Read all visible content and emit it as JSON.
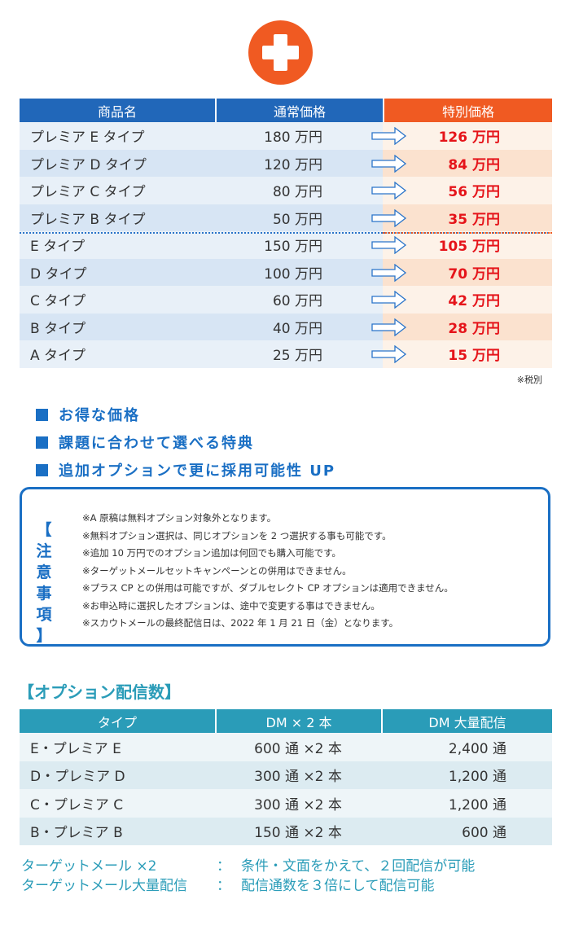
{
  "price_table": {
    "headers": [
      "商品名",
      "通常価格",
      "特別価格"
    ],
    "rows": [
      {
        "name": "プレミア E タイプ",
        "regular": "180 万円",
        "special": "126 万円"
      },
      {
        "name": "プレミア D タイプ",
        "regular": "120 万円",
        "special": "84 万円"
      },
      {
        "name": "プレミア C タイプ",
        "regular": "80 万円",
        "special": "56 万円"
      },
      {
        "name": "プレミア B タイプ",
        "regular": "50 万円",
        "special": "35 万円"
      },
      {
        "name": "E タイプ",
        "regular": "150 万円",
        "special": "105 万円"
      },
      {
        "name": "D タイプ",
        "regular": "100 万円",
        "special": "70 万円"
      },
      {
        "name": "C タイプ",
        "regular": "60 万円",
        "special": "42 万円"
      },
      {
        "name": "B タイプ",
        "regular": "40 万円",
        "special": "28 万円"
      },
      {
        "name": "A タイプ",
        "regular": "25 万円",
        "special": "15 万円"
      }
    ],
    "note": "※税別"
  },
  "features": [
    "お得な価格",
    "課題に合わせて選べる特典",
    "追加オプションで更に採用可能性 UP"
  ],
  "caution": {
    "title": "【注意事項】",
    "title_chars": [
      "【",
      "注",
      "意",
      "事",
      "項",
      "】"
    ],
    "items": [
      "※A 原稿は無料オプション対象外となります。",
      "※無料オプション選択は、同じオプションを 2 つ選択する事も可能です。",
      "※追加 10 万円でのオプション追加は何回でも購入可能です。",
      "※ターゲットメールセットキャンペーンとの併用はできません。",
      "※プラス CP との併用は可能ですが、ダブルセレクト CP オプションは適用できません。",
      "※お申込時に選択したオプションは、途中で変更する事はできません。",
      "※スカウトメールの最終配信日は、2022 年 1 月 21 日（金）となります。"
    ]
  },
  "option_section": {
    "title": "【オプション配信数】",
    "headers": [
      "タイプ",
      "DM × 2 本",
      "DM 大量配信"
    ],
    "rows": [
      {
        "type": "E・プレミア E",
        "dm2": "600 通 ×2 本",
        "bulk": "2,400 通"
      },
      {
        "type": "D・プレミア D",
        "dm2": "300 通 ×2 本",
        "bulk": "1,200 通"
      },
      {
        "type": "C・プレミア C",
        "dm2": "300 通 ×2 本",
        "bulk": "1,200 通"
      },
      {
        "type": "B・プレミア B",
        "dm2": "150 通 ×2 本",
        "bulk": "600 通"
      }
    ]
  },
  "footer": [
    {
      "key": "ターゲットメール ×2",
      "colon": "：",
      "value": "条件・文面をかえて、２回配信が可能"
    },
    {
      "key": "ターゲットメール大量配信",
      "colon": "：",
      "value": "配信通数を３倍にして配信可能"
    }
  ],
  "colors": {
    "blue": "#2167b9",
    "orange": "#f05a22",
    "teal": "#2a9cb8",
    "red": "#e5141a"
  }
}
